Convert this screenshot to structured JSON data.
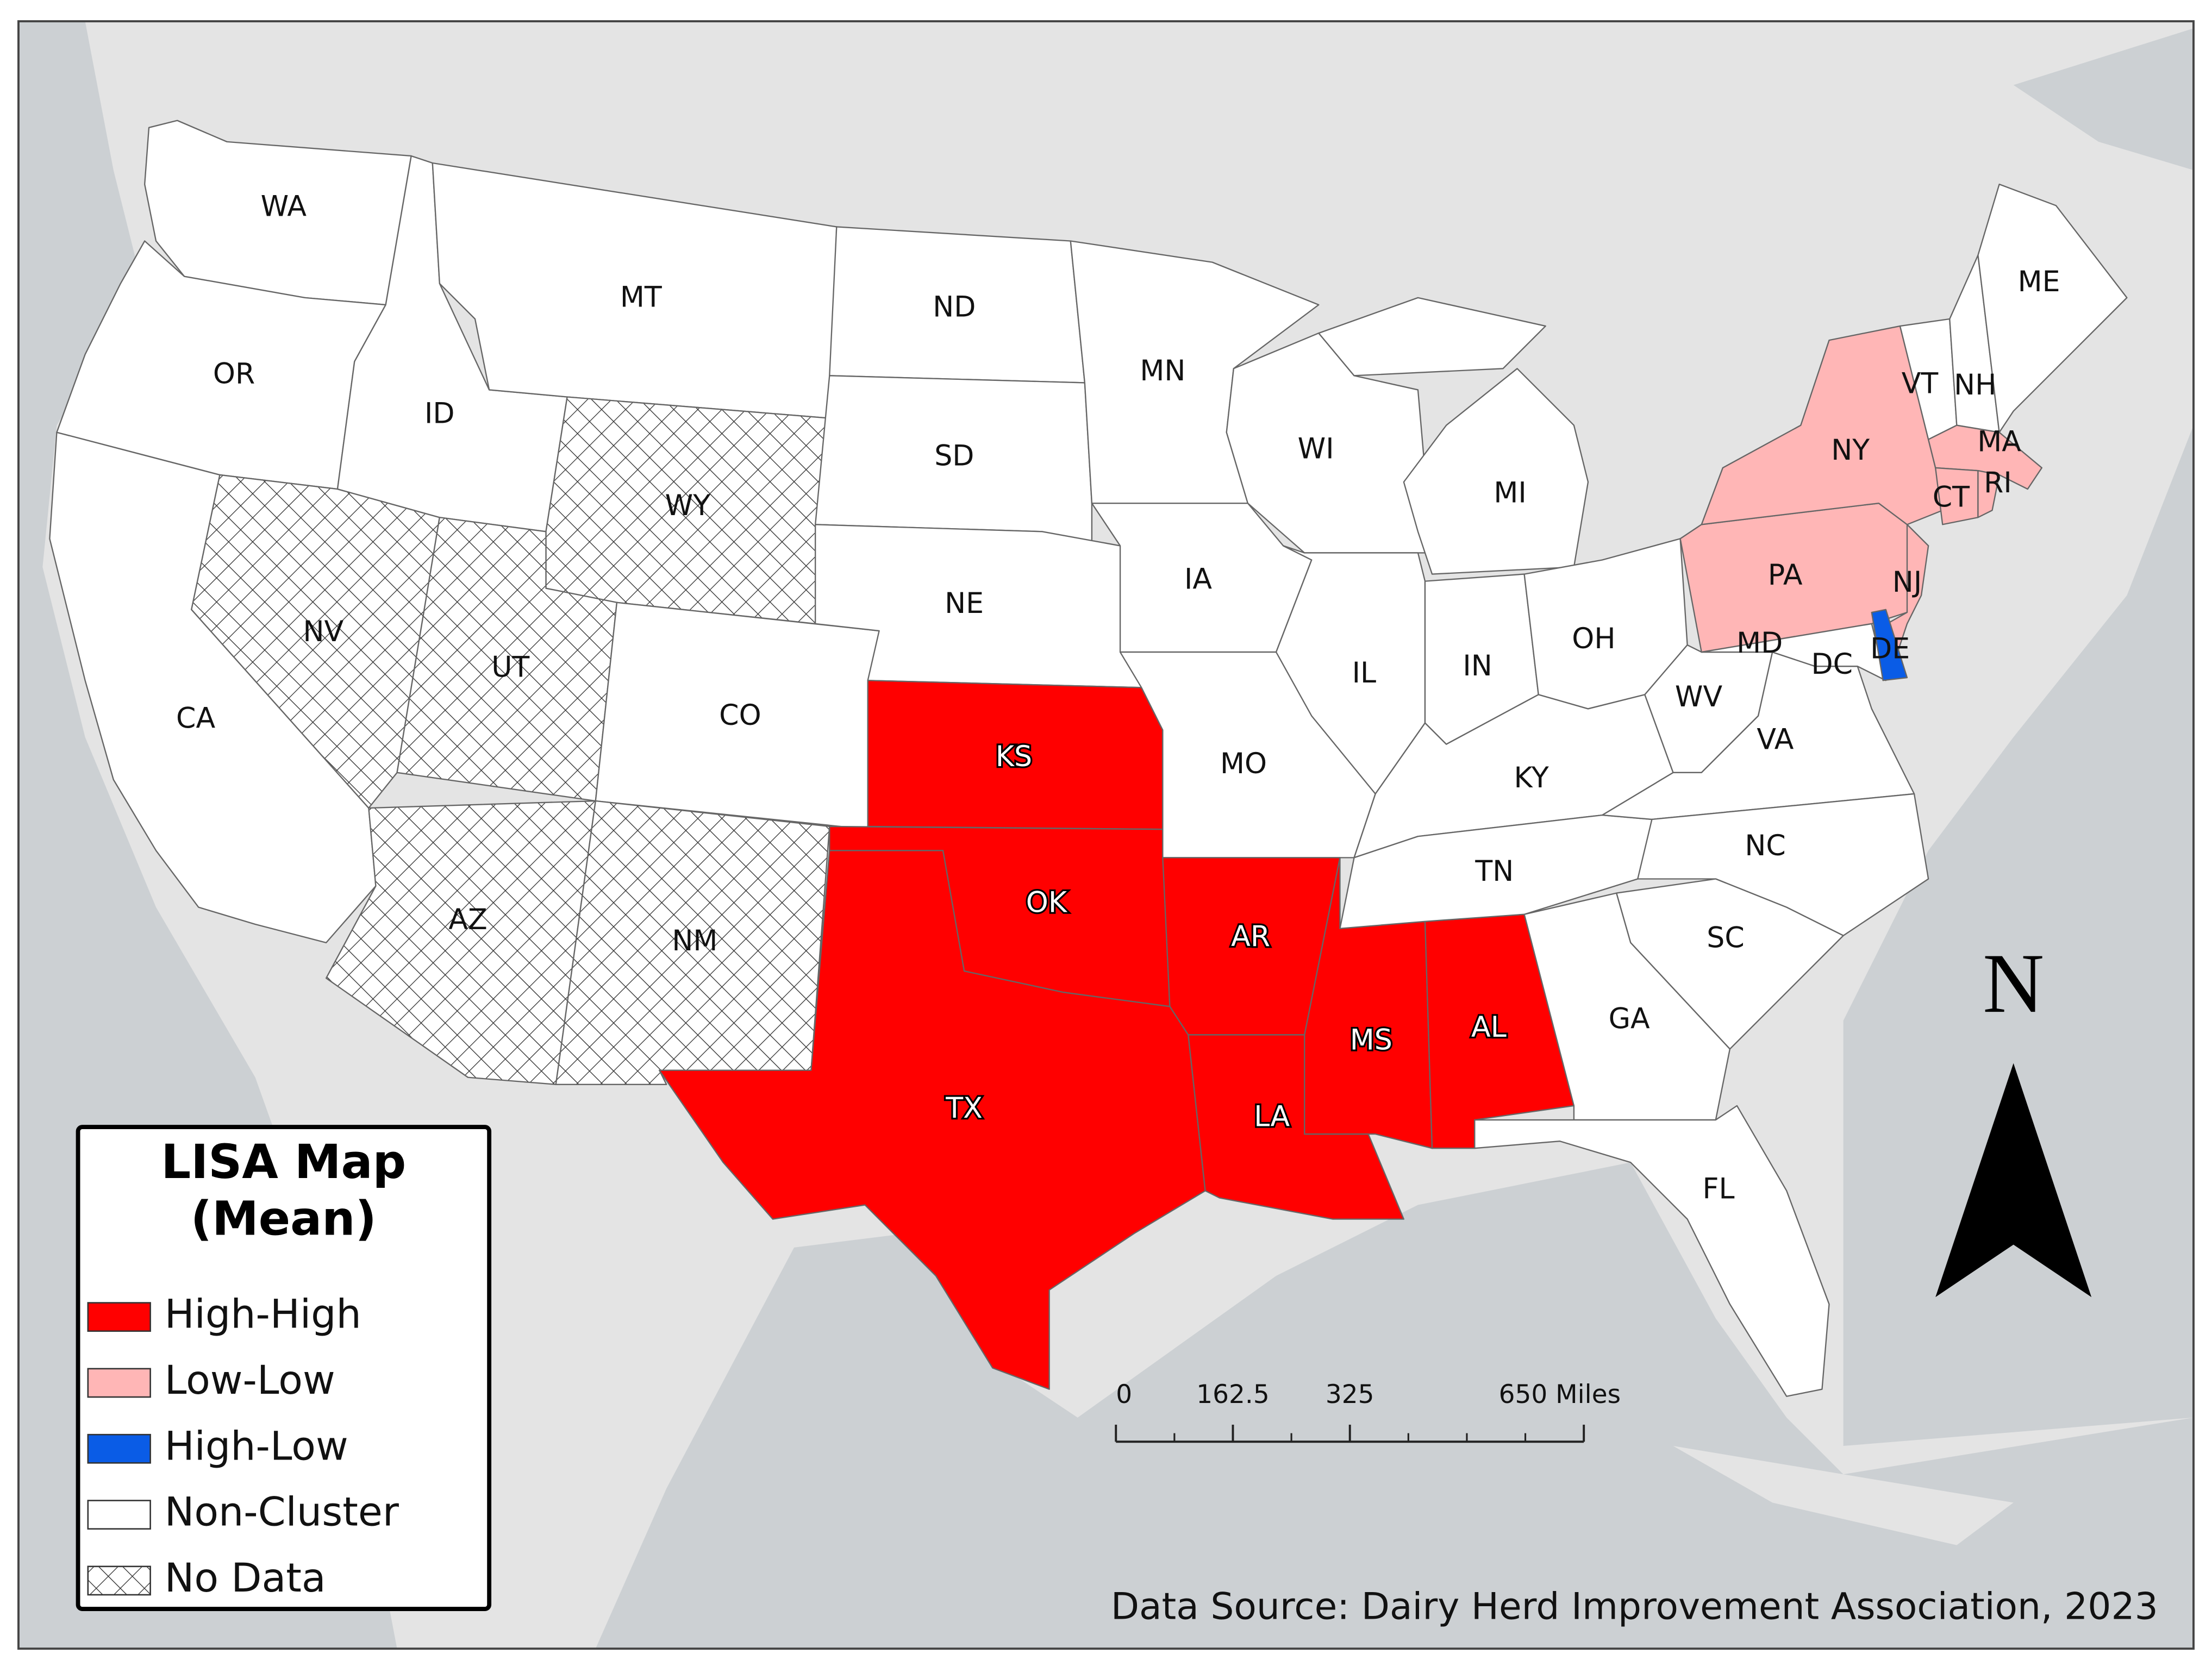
{
  "map": {
    "states": [
      {
        "label": "WA",
        "fill": "#ffffff"
      },
      {
        "label": "OR",
        "fill": "#ffffff"
      },
      {
        "label": "CA",
        "fill": "#ffffff"
      },
      {
        "label": "NV",
        "fill": "hatch"
      },
      {
        "label": "ID",
        "fill": "#ffffff"
      },
      {
        "label": "MT",
        "fill": "#ffffff"
      },
      {
        "label": "WY",
        "fill": "hatch"
      },
      {
        "label": "UT",
        "fill": "hatch"
      },
      {
        "label": "CO",
        "fill": "#ffffff"
      },
      {
        "label": "AZ",
        "fill": "hatch"
      },
      {
        "label": "NM",
        "fill": "hatch"
      },
      {
        "label": "ND",
        "fill": "#ffffff"
      },
      {
        "label": "SD",
        "fill": "#ffffff"
      },
      {
        "label": "NE",
        "fill": "#ffffff"
      },
      {
        "label": "KS",
        "fill": "#ff0000"
      },
      {
        "label": "OK",
        "fill": "#ff0000"
      },
      {
        "label": "TX",
        "fill": "#ff0000"
      },
      {
        "label": "MN",
        "fill": "#ffffff"
      },
      {
        "label": "IA",
        "fill": "#ffffff"
      },
      {
        "label": "MO",
        "fill": "#ffffff"
      },
      {
        "label": "AR",
        "fill": "#ff0000"
      },
      {
        "label": "LA",
        "fill": "#ff0000"
      },
      {
        "label": "MS",
        "fill": "#ff0000"
      },
      {
        "label": "AL",
        "fill": "#ff0000"
      },
      {
        "label": "WI",
        "fill": "#ffffff"
      },
      {
        "label": "MI",
        "fill": "#ffffff"
      },
      {
        "label": "IL",
        "fill": "#ffffff"
      },
      {
        "label": "IN",
        "fill": "#ffffff"
      },
      {
        "label": "OH",
        "fill": "#ffffff"
      },
      {
        "label": "KY",
        "fill": "#ffffff"
      },
      {
        "label": "TN",
        "fill": "#ffffff"
      },
      {
        "label": "WV",
        "fill": "#ffffff"
      },
      {
        "label": "VA",
        "fill": "#ffffff"
      },
      {
        "label": "NC",
        "fill": "#ffffff"
      },
      {
        "label": "SC",
        "fill": "#ffffff"
      },
      {
        "label": "GA",
        "fill": "#ffffff"
      },
      {
        "label": "FL",
        "fill": "#ffffff"
      },
      {
        "label": "PA",
        "fill": "#ffb6b6"
      },
      {
        "label": "NY",
        "fill": "#ffb6b6"
      },
      {
        "label": "NJ",
        "fill": "#ffb6b6"
      },
      {
        "label": "MD",
        "fill": "#ffffff"
      },
      {
        "label": "DE",
        "fill": "#0a5ce6"
      },
      {
        "label": "DC"
      },
      {
        "label": "VT",
        "fill": "#ffffff"
      },
      {
        "label": "NH",
        "fill": "#ffffff"
      },
      {
        "label": "ME",
        "fill": "#ffffff"
      },
      {
        "label": "MA",
        "fill": "#ffb6b6"
      },
      {
        "label": "CT",
        "fill": "#ffb6b6"
      },
      {
        "label": "RI",
        "fill": "#ffb6b6"
      }
    ],
    "legend": {
      "title": [
        "LISA Map",
        "(Mean)"
      ],
      "items": [
        {
          "label": "High-High",
          "fill": "#ff0000"
        },
        {
          "label": "Low-Low",
          "fill": "#ffb6b6"
        },
        {
          "label": "High-Low",
          "fill": "#0a5ce6"
        },
        {
          "label": "Non-Cluster",
          "fill": "#ffffff"
        },
        {
          "label": "No Data",
          "fill": "hatch"
        }
      ]
    },
    "north_arrow": "N",
    "scale_bar": {
      "ticks": [
        0,
        162.5,
        325,
        {
          "value": 650,
          "label": "650 Miles"
        }
      ]
    },
    "source": "Data Source: Dairy Herd Improvement Association, 2023"
  }
}
